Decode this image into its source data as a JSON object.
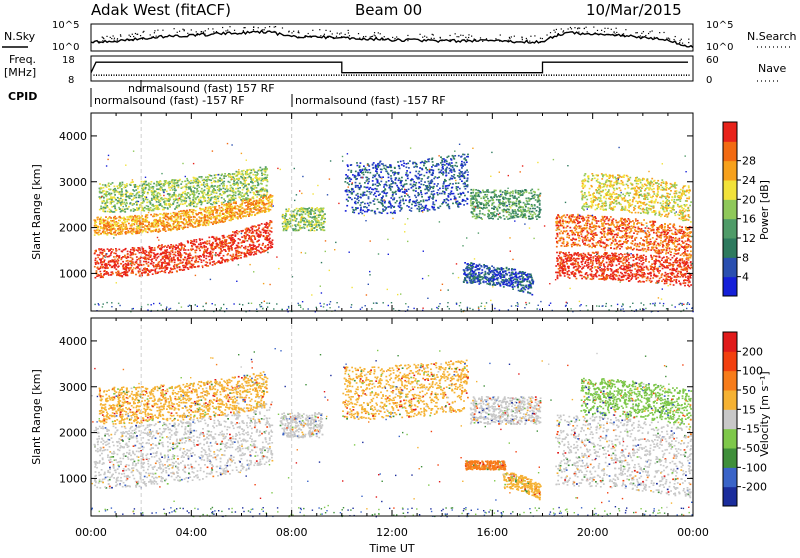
{
  "header": {
    "station": "Adak West (fitACF)",
    "beam": "Beam 00",
    "date": "10/Mar/2015"
  },
  "status_panels": {
    "nsky_label": "N.Sky",
    "nsearch_label": "N.Search",
    "nsky_ticks": [
      "10^5",
      "10^0"
    ],
    "nsearch_ticks": [
      "10^5",
      "10^0"
    ],
    "freq_label": "Freq.",
    "freq_unit": "[MHz]",
    "freq_ticks": [
      "18",
      "8"
    ],
    "nave_label": "Nave",
    "nave_ticks": [
      "60",
      "0"
    ],
    "cpid_label": "CPID",
    "cpid_entries": [
      "normalsound (fast) 157 RF",
      "normalsound (fast) -157 RF",
      "normalsound (fast) -157 RF"
    ]
  },
  "axes": {
    "xlabel": "Time UT",
    "x_ticks": [
      "00:00",
      "04:00",
      "08:00",
      "12:00",
      "16:00",
      "20:00",
      "00:00"
    ],
    "ylabel": "Slant Range [km]",
    "y_ticks": [
      "1000",
      "2000",
      "3000",
      "4000"
    ]
  },
  "colorbars": {
    "power": {
      "label": "Power [dB]",
      "ticks": [
        "4",
        "8",
        "12",
        "16",
        "20",
        "24",
        "28"
      ],
      "colors": [
        "#1520d8",
        "#2a4fb0",
        "#2e7a5e",
        "#4f9b68",
        "#8fc85a",
        "#f2e23a",
        "#f7a11c",
        "#f26a12",
        "#e8221a"
      ]
    },
    "velocity": {
      "label": "Velocity [m s⁻¹]",
      "ticks": [
        "200",
        "100",
        "50",
        "15",
        "-15",
        "-50",
        "-100",
        "-200"
      ],
      "colors": [
        "#1b2d9c",
        "#3a64c8",
        "#3f8f3a",
        "#7ec84a",
        "#c8c8c8",
        "#f5b233",
        "#f77c1a",
        "#f2400f",
        "#e01a1a"
      ]
    }
  },
  "chart_data": {
    "type": "heatmap",
    "x_range_hours": [
      0,
      24
    ],
    "y_range_km": [
      180,
      4500
    ],
    "power_bands": [
      {
        "start_h": 0.1,
        "end_h": 7.2,
        "range_start_km": 920,
        "range_end_km": 1550,
        "curve": 0.7,
        "color_idx": 8
      },
      {
        "start_h": 0.1,
        "end_h": 7.2,
        "range_start_km": 1850,
        "range_end_km": 2250,
        "curve": 0.6,
        "color_idx": 6
      },
      {
        "start_h": 0.3,
        "end_h": 7.0,
        "range_start_km": 2350,
        "range_end_km": 3000,
        "curve": 0.4,
        "color_idx": 4
      },
      {
        "start_h": 7.6,
        "end_h": 9.3,
        "range_start_km": 1950,
        "range_end_km": 2450,
        "curve": 0,
        "color_idx": 4
      },
      {
        "start_h": 10.1,
        "end_h": 15.0,
        "range_start_km": 2300,
        "range_end_km": 3450,
        "curve": 0.2,
        "color_idx": 1
      },
      {
        "start_h": 15.1,
        "end_h": 17.9,
        "range_start_km": 2200,
        "range_end_km": 2850,
        "curve": 0,
        "color_idx": 3
      },
      {
        "start_h": 14.8,
        "end_h": 17.6,
        "range_start_km": 800,
        "range_end_km": 1250,
        "curve": -0.3,
        "color_idx": 1
      },
      {
        "start_h": 18.5,
        "end_h": 23.9,
        "range_start_km": 900,
        "range_end_km": 1500,
        "curve": -0.2,
        "color_idx": 8
      },
      {
        "start_h": 18.5,
        "end_h": 23.9,
        "range_start_km": 1600,
        "range_end_km": 2300,
        "curve": -0.3,
        "color_idx": 7
      },
      {
        "start_h": 19.5,
        "end_h": 23.9,
        "range_start_km": 2400,
        "range_end_km": 3200,
        "curve": -0.3,
        "color_idx": 5
      }
    ],
    "velocity_bands": [
      {
        "start_h": 0.1,
        "end_h": 7.2,
        "range_start_km": 800,
        "range_end_km": 2150,
        "curve": 0.6,
        "color_idx": 4
      },
      {
        "start_h": 0.3,
        "end_h": 7.0,
        "range_start_km": 2200,
        "range_end_km": 3000,
        "curve": 0.4,
        "color_idx": 5
      },
      {
        "start_h": 7.5,
        "end_h": 9.2,
        "range_start_km": 1900,
        "range_end_km": 2450,
        "curve": 0,
        "color_idx": 4
      },
      {
        "start_h": 10.0,
        "end_h": 15.0,
        "range_start_km": 2300,
        "range_end_km": 3450,
        "curve": 0.2,
        "color_idx": 5
      },
      {
        "start_h": 15.1,
        "end_h": 17.9,
        "range_start_km": 2200,
        "range_end_km": 2800,
        "curve": 0,
        "color_idx": 4
      },
      {
        "start_h": 14.9,
        "end_h": 16.5,
        "range_start_km": 1200,
        "range_end_km": 1400,
        "curve": 0,
        "color_idx": 6
      },
      {
        "start_h": 16.4,
        "end_h": 17.9,
        "range_start_km": 800,
        "range_end_km": 1150,
        "curve": -0.3,
        "color_idx": 5
      },
      {
        "start_h": 18.5,
        "end_h": 23.9,
        "range_start_km": 850,
        "range_end_km": 2400,
        "curve": -0.3,
        "color_idx": 4
      },
      {
        "start_h": 19.5,
        "end_h": 23.9,
        "range_start_km": 2400,
        "range_end_km": 3200,
        "curve": -0.3,
        "color_idx": 3
      }
    ],
    "nsky_level": [
      [
        0,
        0.3
      ],
      [
        1,
        0.35
      ],
      [
        3,
        0.55
      ],
      [
        5,
        0.65
      ],
      [
        7,
        0.75
      ],
      [
        8,
        0.55
      ],
      [
        10,
        0.5
      ],
      [
        12,
        0.4
      ],
      [
        14,
        0.35
      ],
      [
        16,
        0.35
      ],
      [
        18,
        0.3
      ],
      [
        18.3,
        0.5
      ],
      [
        19,
        0.7
      ],
      [
        21,
        0.6
      ],
      [
        23,
        0.4
      ],
      [
        23.6,
        0.15
      ],
      [
        24,
        0.1
      ]
    ],
    "freq_steps_mhz": [
      [
        0.0,
        11.0
      ],
      [
        0.2,
        16.0
      ],
      [
        10.0,
        16.0
      ],
      [
        10.0,
        11.0
      ],
      [
        18.0,
        11.0
      ],
      [
        18.0,
        16.0
      ],
      [
        23.8,
        16.0
      ]
    ],
    "nave_level": 0.4,
    "cpid_change_hours": [
      2.0,
      8.0
    ]
  }
}
